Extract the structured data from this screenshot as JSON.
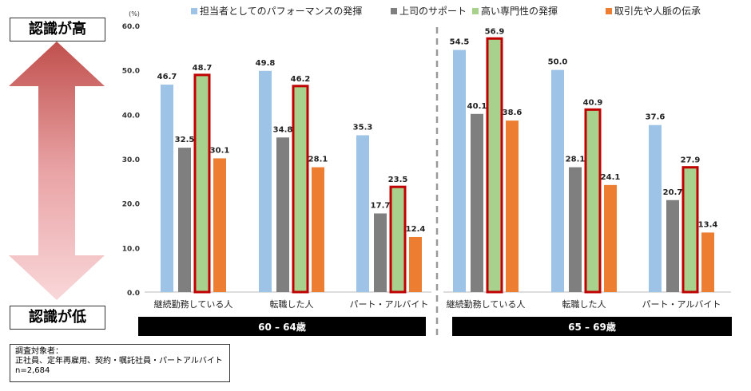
{
  "scale": {
    "high_label": "認識が高",
    "low_label": "認識が低"
  },
  "note": {
    "line1": "調査対象者：",
    "line2": "正社員、定年再雇用、契約・嘱託社員・パートアルバイト",
    "line3": "n=2,684"
  },
  "colors": {
    "series": [
      "#9DC3E6",
      "#7F7F7F",
      "#A9D18E",
      "#ED7D31"
    ],
    "highlight": "#C00000",
    "band": "#000000"
  },
  "chart_data": {
    "type": "bar",
    "unit": "(%)",
    "ylim": [
      0,
      60
    ],
    "yticks": [
      "0.0",
      "10.0",
      "20.0",
      "30.0",
      "40.0",
      "50.0",
      "60.0"
    ],
    "series_names": [
      "担当者としてのパフォーマンスの発揮",
      "上司のサポート",
      "高い専門性の発揮",
      "取引先や人脈の伝承"
    ],
    "highlight_series_index": 2,
    "legend_position": "top",
    "panels": [
      {
        "band_label": "60 – 64歳",
        "categories": [
          "継続勤務している人",
          "転職した人",
          "パート・アルバイト"
        ],
        "values": [
          [
            46.7,
            32.5,
            48.7,
            30.1
          ],
          [
            49.8,
            34.8,
            46.2,
            28.1
          ],
          [
            35.3,
            17.7,
            23.5,
            12.4
          ]
        ]
      },
      {
        "band_label": "65 – 69歳",
        "categories": [
          "継続勤務している人",
          "転職した人",
          "パート・アルバイト"
        ],
        "values": [
          [
            54.5,
            40.1,
            56.9,
            38.6
          ],
          [
            50.0,
            28.1,
            40.9,
            24.1
          ],
          [
            37.6,
            20.7,
            27.9,
            13.4
          ]
        ]
      }
    ]
  }
}
